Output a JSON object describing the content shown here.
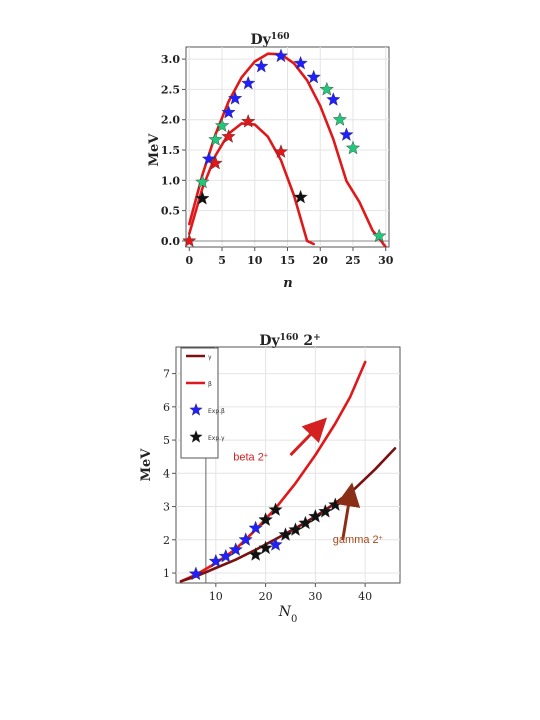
{
  "colors": {
    "red_curve": "#e0181a",
    "dark_curve": "#7a1010",
    "blue_star": "#1f1fff",
    "green_star": "#22c87a",
    "red_star": "#e0181a",
    "black_star": "#111111",
    "arrow_red": "#d42020",
    "arrow_brown": "#8a2e16",
    "label_brown": "#a84a1a",
    "frame": "#555555",
    "grid": "#e4e4e4"
  },
  "chart_data": [
    {
      "type": "scatter",
      "title": "Dy",
      "title_sup": "160",
      "xlabel": "n",
      "ylabel": "MeV",
      "xlim": [
        -0.5,
        30.5
      ],
      "ylim": [
        -0.1,
        3.2
      ],
      "xticks": [
        0,
        5,
        10,
        15,
        20,
        25,
        30
      ],
      "xtick_labels": [
        "0",
        "5",
        "10",
        "15",
        "20",
        "25",
        "30"
      ],
      "yticks": [
        0.0,
        0.5,
        1.0,
        1.5,
        2.0,
        2.5,
        3.0
      ],
      "ytick_labels": [
        "0.0",
        "0.5",
        "1.0",
        "1.5",
        "2.0",
        "2.5",
        "3.0"
      ],
      "grid": true,
      "baseline_y": 0,
      "curves": [
        {
          "color_key": "red_curve",
          "x": [
            0,
            2,
            4,
            6,
            8,
            10,
            12,
            14,
            16,
            18,
            20,
            22,
            24,
            26,
            28,
            29,
            30
          ],
          "y": [
            0.28,
            1.09,
            1.76,
            2.3,
            2.7,
            2.96,
            3.09,
            3.08,
            2.93,
            2.65,
            2.23,
            1.68,
            0.99,
            0.64,
            0.17,
            0.04,
            -0.1
          ]
        },
        {
          "color_key": "red_curve",
          "x": [
            0,
            2,
            4,
            6,
            8,
            10,
            12,
            14,
            16,
            18,
            19
          ],
          "y": [
            0.12,
            0.87,
            1.41,
            1.77,
            1.94,
            1.92,
            1.72,
            1.33,
            0.75,
            0.0,
            -0.05
          ]
        }
      ],
      "points": [
        {
          "x": 0,
          "y": 0.0,
          "color_key": "red_star"
        },
        {
          "x": 2,
          "y": 0.7,
          "color_key": "black_star"
        },
        {
          "x": 2,
          "y": 0.97,
          "color_key": "green_star"
        },
        {
          "x": 3,
          "y": 1.35,
          "color_key": "blue_star"
        },
        {
          "x": 4,
          "y": 1.28,
          "color_key": "red_star"
        },
        {
          "x": 4,
          "y": 1.67,
          "color_key": "green_star"
        },
        {
          "x": 5,
          "y": 1.9,
          "color_key": "green_star"
        },
        {
          "x": 6,
          "y": 1.72,
          "color_key": "red_star"
        },
        {
          "x": 6,
          "y": 2.12,
          "color_key": "blue_star"
        },
        {
          "x": 7,
          "y": 2.35,
          "color_key": "blue_star"
        },
        {
          "x": 9,
          "y": 2.6,
          "color_key": "blue_star"
        },
        {
          "x": 9,
          "y": 1.97,
          "color_key": "red_star"
        },
        {
          "x": 11,
          "y": 2.88,
          "color_key": "blue_star"
        },
        {
          "x": 14,
          "y": 3.05,
          "color_key": "blue_star"
        },
        {
          "x": 14,
          "y": 1.47,
          "color_key": "red_star"
        },
        {
          "x": 17,
          "y": 2.93,
          "color_key": "blue_star"
        },
        {
          "x": 17,
          "y": 0.72,
          "color_key": "black_star"
        },
        {
          "x": 19,
          "y": 2.7,
          "color_key": "blue_star"
        },
        {
          "x": 21,
          "y": 2.5,
          "color_key": "green_star"
        },
        {
          "x": 22,
          "y": 2.33,
          "color_key": "blue_star"
        },
        {
          "x": 23,
          "y": 2.0,
          "color_key": "green_star"
        },
        {
          "x": 24,
          "y": 1.75,
          "color_key": "blue_star"
        },
        {
          "x": 25,
          "y": 1.53,
          "color_key": "green_star"
        },
        {
          "x": 29,
          "y": 0.08,
          "color_key": "green_star"
        }
      ]
    },
    {
      "type": "line",
      "title": "Dy",
      "title_sup": "160",
      "title_suffix": " 2",
      "title_suffix_sup": "+",
      "xlabel": "N",
      "xlabel_sub": "0",
      "ylabel": "MeV",
      "xlim": [
        2,
        47
      ],
      "ylim": [
        0.7,
        7.8
      ],
      "xticks": [
        10,
        20,
        30,
        40
      ],
      "xtick_labels": [
        "10",
        "20",
        "30",
        "40"
      ],
      "yticks": [
        1,
        2,
        3,
        4,
        5,
        6,
        7
      ],
      "ytick_labels": [
        "1",
        "2",
        "3",
        "4",
        "5",
        "6",
        "7"
      ],
      "grid": true,
      "vertical_line_x": 8,
      "legend": {
        "placement": "top-left",
        "entries": [
          {
            "kind": "line",
            "color_key": "dark_curve",
            "label": "γ"
          },
          {
            "kind": "line",
            "color_key": "red_curve",
            "label": "β"
          },
          {
            "kind": "star",
            "color_key": "blue_star",
            "label": "Exp.β"
          },
          {
            "kind": "star",
            "color_key": "black_star",
            "label": "Exp.γ"
          }
        ]
      },
      "series": [
        {
          "name": "β",
          "color_key": "red_curve",
          "x": [
            3,
            6,
            10,
            14,
            18,
            22,
            26,
            30,
            34,
            37,
            40
          ],
          "y": [
            0.75,
            0.95,
            1.3,
            1.72,
            2.3,
            2.95,
            3.7,
            4.55,
            5.5,
            6.3,
            7.35
          ]
        },
        {
          "name": "γ",
          "color_key": "dark_curve",
          "x": [
            3,
            6,
            10,
            14,
            18,
            22,
            26,
            30,
            34,
            38,
            42,
            46
          ],
          "y": [
            0.75,
            0.9,
            1.15,
            1.4,
            1.7,
            2.02,
            2.35,
            2.7,
            3.1,
            3.55,
            4.12,
            4.75
          ]
        }
      ],
      "points": [
        {
          "x": 6,
          "y": 0.97,
          "color_key": "blue_star"
        },
        {
          "x": 10,
          "y": 1.35,
          "color_key": "blue_star"
        },
        {
          "x": 12,
          "y": 1.5,
          "color_key": "blue_star"
        },
        {
          "x": 14,
          "y": 1.7,
          "color_key": "blue_star"
        },
        {
          "x": 16,
          "y": 2.0,
          "color_key": "blue_star"
        },
        {
          "x": 18,
          "y": 2.35,
          "color_key": "blue_star"
        },
        {
          "x": 20,
          "y": 2.6,
          "color_key": "blue_star"
        },
        {
          "x": 22,
          "y": 1.85,
          "color_key": "blue_star"
        },
        {
          "x": 18,
          "y": 1.55,
          "color_key": "black_star"
        },
        {
          "x": 20,
          "y": 1.75,
          "color_key": "black_star"
        },
        {
          "x": 20,
          "y": 2.6,
          "color_key": "black_star"
        },
        {
          "x": 22,
          "y": 2.9,
          "color_key": "black_star"
        },
        {
          "x": 24,
          "y": 2.15,
          "color_key": "black_star"
        },
        {
          "x": 26,
          "y": 2.3,
          "color_key": "black_star"
        },
        {
          "x": 28,
          "y": 2.5,
          "color_key": "black_star"
        },
        {
          "x": 30,
          "y": 2.7,
          "color_key": "black_star"
        },
        {
          "x": 32,
          "y": 2.85,
          "color_key": "black_star"
        },
        {
          "x": 34,
          "y": 3.05,
          "color_key": "black_star"
        }
      ],
      "annotations": [
        {
          "text": "beta 2",
          "sup": "+",
          "color_key": "arrow_red",
          "label_at": [
            13.5,
            4.38
          ],
          "arrow_from": [
            25.0,
            4.55
          ],
          "arrow_to": [
            31.5,
            5.55
          ]
        },
        {
          "text": "gamma 2",
          "sup": "+",
          "color_key": "arrow_brown",
          "label_at": [
            33.5,
            1.9
          ],
          "arrow_from": [
            35.5,
            2.0
          ],
          "arrow_to": [
            37.2,
            3.55
          ]
        }
      ]
    }
  ]
}
